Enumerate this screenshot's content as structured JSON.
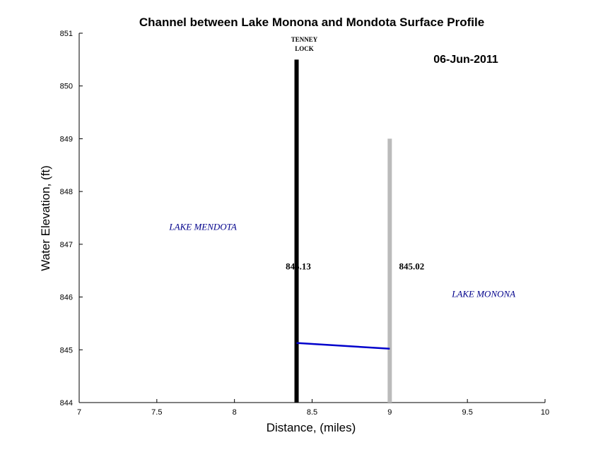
{
  "chart_data": {
    "type": "line",
    "title": "Channel between Lake Monona and Mondota Surface Profile",
    "date": "06-Jun-2011",
    "xlabel": "Distance, (miles)",
    "ylabel": "Water Elevation, (ft)",
    "xlim": [
      7,
      10
    ],
    "ylim": [
      844,
      851
    ],
    "x_ticks": [
      "7",
      "7.5",
      "8",
      "8.5",
      "9",
      "9.5",
      "10"
    ],
    "y_ticks": [
      "844",
      "845",
      "846",
      "847",
      "848",
      "849",
      "850",
      "851"
    ],
    "grid": false,
    "series": [
      {
        "x": [
          8.4,
          9.0
        ],
        "y": [
          845.13,
          845.02
        ],
        "color": "#0000cc"
      }
    ],
    "structures": [
      {
        "x": 8.4,
        "top": 850.5,
        "color": "#000000",
        "label_lines": [
          "TENNEY",
          "LOCK"
        ]
      },
      {
        "x": 9.0,
        "top": 849.0,
        "color": "#bbbbbb"
      }
    ],
    "annotations": [
      {
        "text": "LAKE MENDOTA",
        "x": 7.58,
        "y": 847.27,
        "color": "#00008b",
        "style": "italic"
      },
      {
        "text": "LAKE MONONA",
        "x": 9.4,
        "y": 846.0,
        "color": "#00008b",
        "style": "italic"
      },
      {
        "text": "845.13",
        "x": 8.33,
        "y": 846.52,
        "color": "#000000",
        "style": "bold"
      },
      {
        "text": "845.02",
        "x": 9.06,
        "y": 846.52,
        "color": "#000000",
        "style": "bold"
      }
    ]
  }
}
